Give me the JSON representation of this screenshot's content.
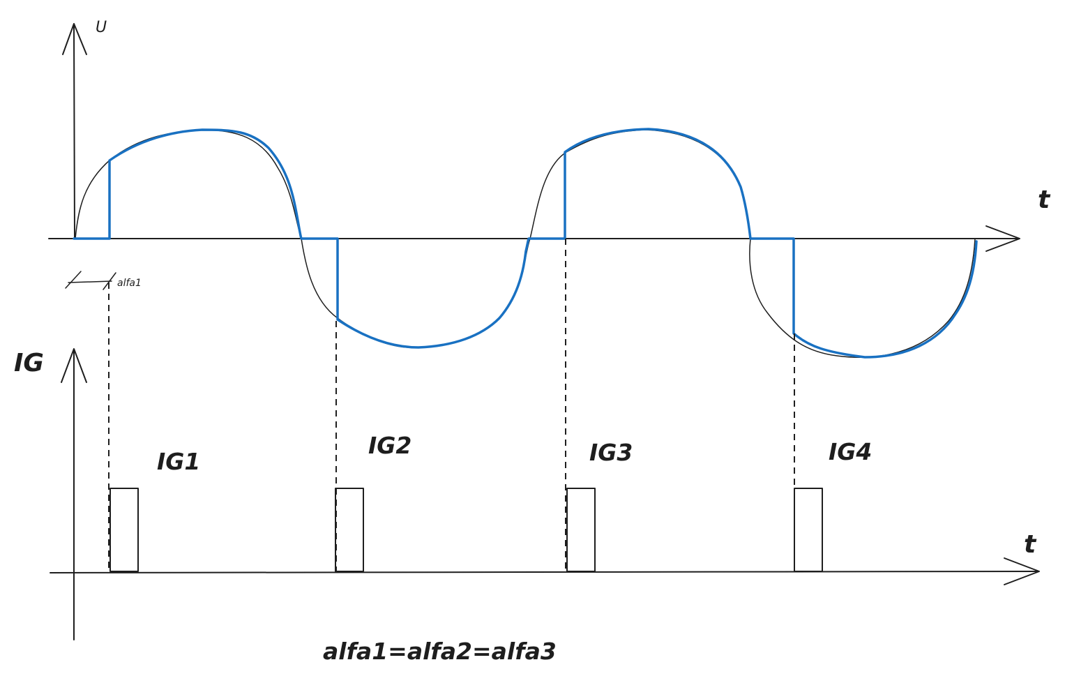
{
  "labels": {
    "voltage_axis": "U",
    "time_axis_top": "t",
    "gate_axis": "IG",
    "time_axis_bottom": "t",
    "alpha_marker": "alfa1",
    "equation": "alfa1=alfa2=alfa3"
  },
  "pulses": [
    {
      "label": "IG1"
    },
    {
      "label": "IG2"
    },
    {
      "label": "IG3"
    },
    {
      "label": "IG4"
    }
  ],
  "colors": {
    "ink": "#1e1e1e",
    "conducting_waveform": "#1971c2",
    "background": "#ffffff"
  }
}
